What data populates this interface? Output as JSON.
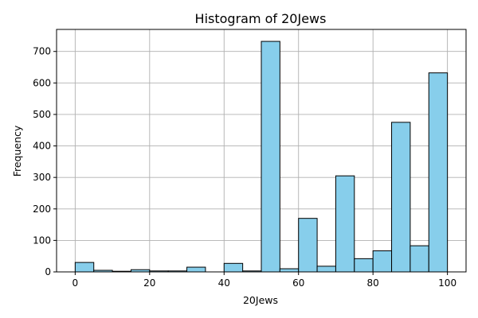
{
  "chart_data": {
    "type": "bar",
    "title": "Histogram of 20Jews",
    "xlabel": "20Jews",
    "ylabel": "Frequency",
    "xlim": [
      -5,
      105
    ],
    "ylim": [
      0,
      770
    ],
    "x_ticks": [
      0,
      20,
      40,
      60,
      80,
      100
    ],
    "y_ticks": [
      0,
      100,
      200,
      300,
      400,
      500,
      600,
      700
    ],
    "grid": true,
    "bar_color": "#87CEEB",
    "bin_edges": [
      0,
      5,
      10,
      15,
      20,
      25,
      30,
      35,
      40,
      45,
      50,
      55,
      60,
      65,
      70,
      75,
      80,
      85,
      90,
      95,
      100
    ],
    "values": [
      30,
      5,
      2,
      7,
      3,
      3,
      15,
      0,
      27,
      3,
      732,
      10,
      170,
      18,
      305,
      42,
      67,
      475,
      83,
      632
    ]
  }
}
